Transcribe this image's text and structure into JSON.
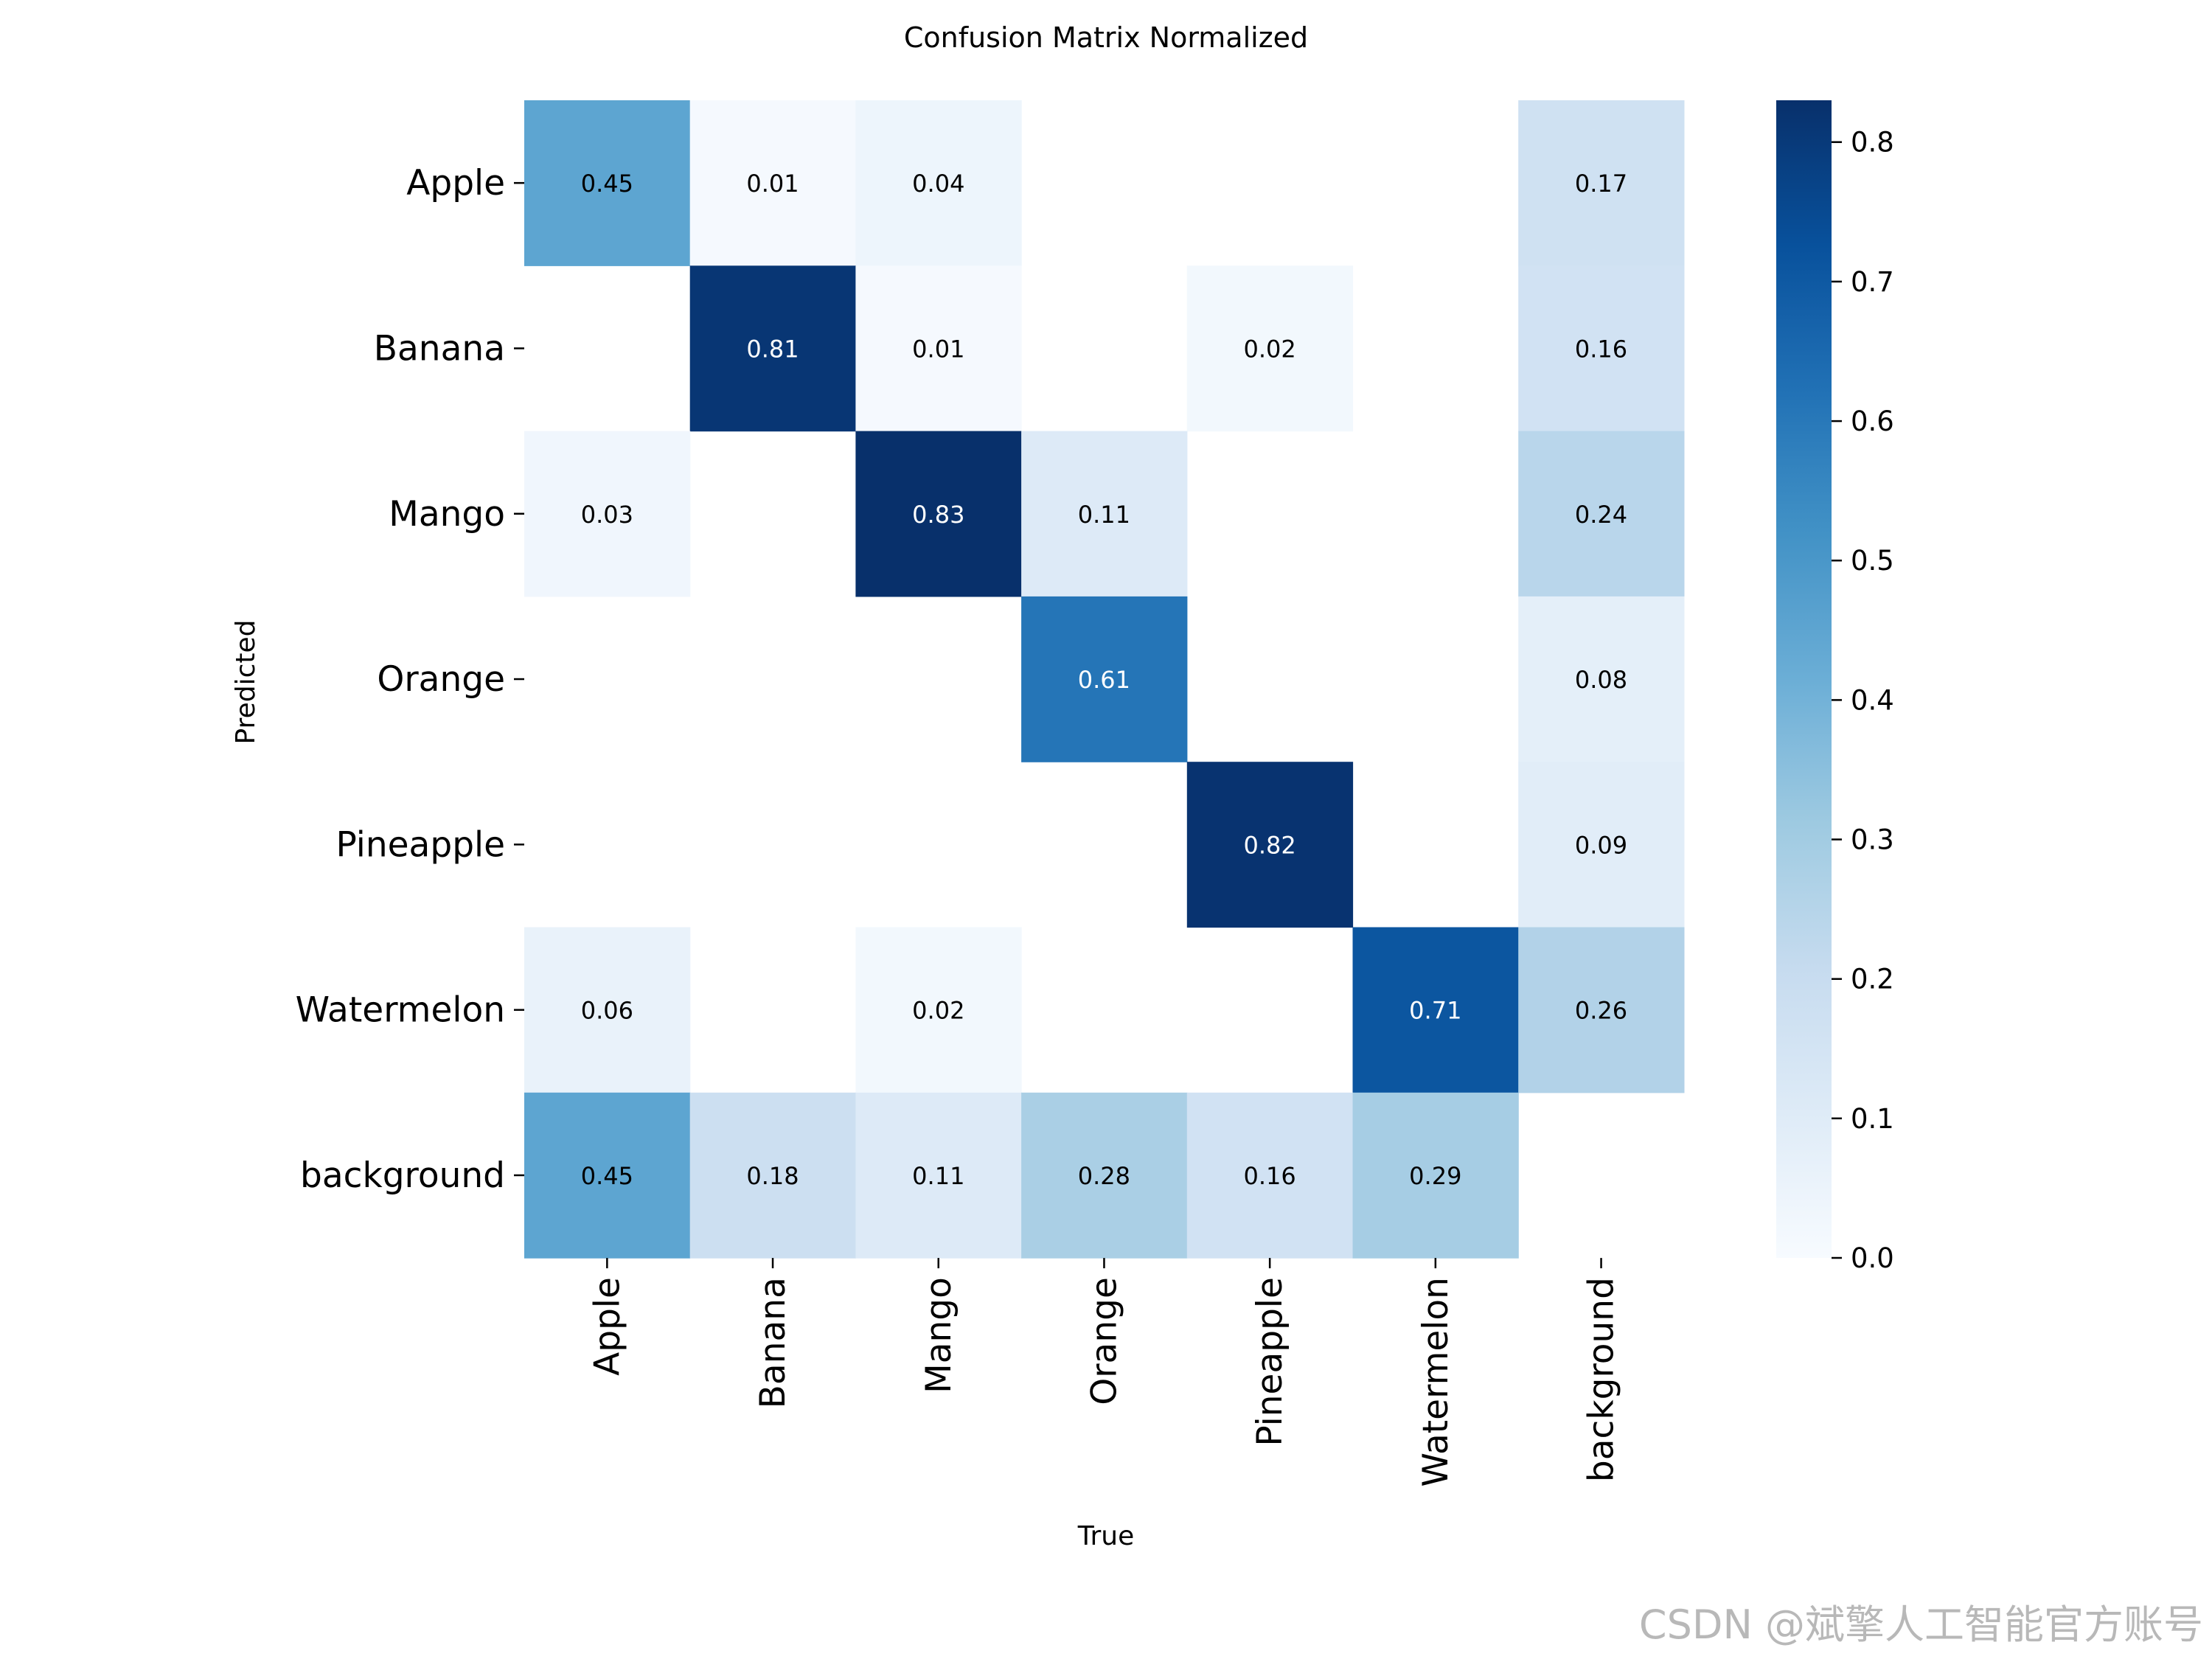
{
  "chart_data": {
    "type": "heatmap",
    "title": "Confusion Matrix Normalized",
    "xlabel": "True",
    "ylabel": "Predicted",
    "x_categories": [
      "Apple",
      "Banana",
      "Mango",
      "Orange",
      "Pineapple",
      "Watermelon",
      "background"
    ],
    "y_categories": [
      "Apple",
      "Banana",
      "Mango",
      "Orange",
      "Pineapple",
      "Watermelon",
      "background"
    ],
    "values": [
      [
        0.45,
        0.01,
        0.04,
        null,
        null,
        null,
        0.17
      ],
      [
        null,
        0.81,
        0.01,
        null,
        0.02,
        null,
        0.16
      ],
      [
        0.03,
        null,
        0.83,
        0.11,
        null,
        null,
        0.24
      ],
      [
        null,
        null,
        null,
        0.61,
        null,
        null,
        0.08
      ],
      [
        null,
        null,
        null,
        null,
        0.82,
        null,
        0.09
      ],
      [
        0.06,
        null,
        0.02,
        null,
        null,
        0.71,
        0.26
      ],
      [
        0.45,
        0.18,
        0.11,
        0.28,
        0.16,
        0.29,
        null
      ]
    ],
    "value_labels_shown": true,
    "colormap": "Blues",
    "color_range": [
      0.0,
      0.83
    ],
    "colorbar": {
      "ticks": [
        "0.0",
        "0.1",
        "0.2",
        "0.3",
        "0.4",
        "0.5",
        "0.6",
        "0.7",
        "0.8"
      ],
      "tick_values": [
        0.0,
        0.1,
        0.2,
        0.3,
        0.4,
        0.5,
        0.6,
        0.7,
        0.8
      ]
    },
    "grid": false,
    "legend": "colorbar-right"
  },
  "watermark": "CSDN @斌擎人工智能官方账号"
}
